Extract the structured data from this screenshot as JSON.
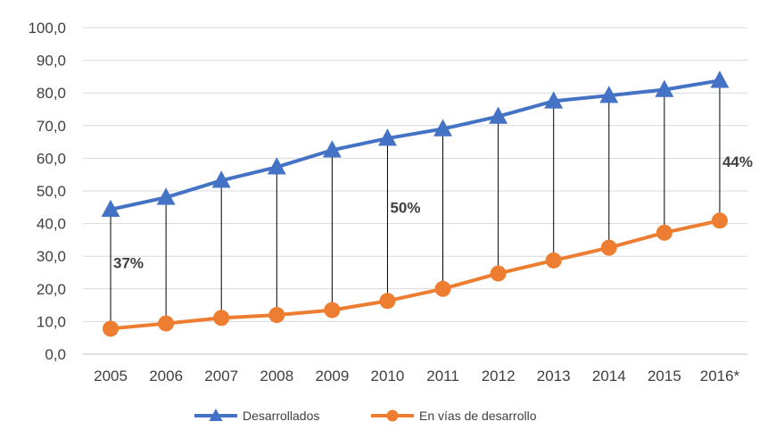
{
  "chart_data": {
    "type": "line",
    "categories": [
      "2005",
      "2006",
      "2007",
      "2008",
      "2009",
      "2010",
      "2011",
      "2012",
      "2013",
      "2014",
      "2015",
      "2016*"
    ],
    "series": [
      {
        "name": "Desarrollados",
        "values": [
          44.3,
          48.0,
          53.2,
          57.3,
          62.5,
          66.1,
          69.0,
          72.8,
          77.5,
          79.2,
          81.0,
          83.8
        ],
        "color": "#4472c4",
        "marker": "triangle"
      },
      {
        "name": "En vías de desarrollo",
        "values": [
          7.8,
          9.4,
          11.1,
          12.0,
          13.5,
          16.3,
          20.0,
          24.7,
          28.7,
          32.6,
          37.2,
          40.9
        ],
        "color": "#ed7d31",
        "marker": "circle"
      }
    ],
    "yticks": [
      "0,0",
      "10,0",
      "20,0",
      "30,0",
      "40,0",
      "50,0",
      "60,0",
      "70,0",
      "80,0",
      "90,0",
      "100,0"
    ],
    "ylim": [
      0,
      100
    ],
    "grid": true,
    "legend": "bottom",
    "annotations": [
      {
        "text": "37%",
        "category": "2005",
        "y": 28
      },
      {
        "text": "50%",
        "category": "2010",
        "y": 45
      },
      {
        "text": "44%",
        "category": "2016*",
        "y": 59
      }
    ],
    "title": "",
    "xlabel": "",
    "ylabel": ""
  }
}
